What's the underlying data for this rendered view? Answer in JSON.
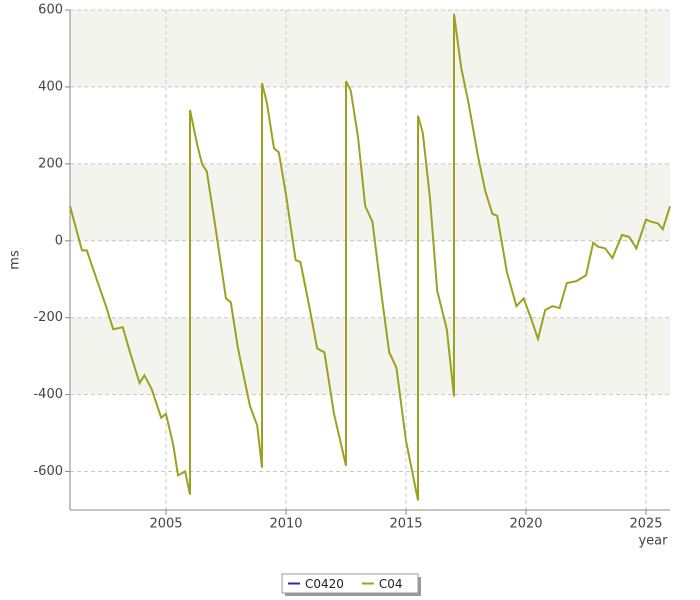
{
  "chart_data": {
    "type": "line",
    "x_label": "year",
    "y_label": "ms",
    "xlim": [
      2001,
      2026
    ],
    "xticks": [
      2005,
      2010,
      2015,
      2020,
      2025
    ],
    "ylim": [
      -700,
      600
    ],
    "yticks": [
      -600,
      -400,
      -200,
      0,
      200,
      400,
      600
    ],
    "grid": true,
    "legend": "bottom",
    "series": [
      {
        "name": "C0420",
        "color": "#2b2bb0",
        "x": [],
        "values": []
      },
      {
        "name": "C04",
        "color": "#9aa31f",
        "x": [
          2001.0,
          2001.5,
          2001.7,
          2002.0,
          2002.5,
          2002.8,
          2003.2,
          2003.5,
          2003.9,
          2004.1,
          2004.4,
          2004.8,
          2005.0,
          2005.3,
          2005.5,
          2005.8,
          2006.0,
          2006.0,
          2006.3,
          2006.5,
          2006.7,
          2007.0,
          2007.5,
          2007.7,
          2008.0,
          2008.5,
          2008.8,
          2009.0,
          2009.0,
          2009.2,
          2009.5,
          2009.7,
          2010.0,
          2010.4,
          2010.6,
          2011.0,
          2011.3,
          2011.6,
          2012.0,
          2012.5,
          2012.5,
          2012.7,
          2013.0,
          2013.3,
          2013.6,
          2014.0,
          2014.3,
          2014.6,
          2015.0,
          2015.5,
          2015.5,
          2015.7,
          2016.0,
          2016.3,
          2016.7,
          2017.0,
          2017.0,
          2017.3,
          2017.6,
          2018.0,
          2018.3,
          2018.6,
          2018.8,
          2019.2,
          2019.6,
          2019.9,
          2020.2,
          2020.5,
          2020.8,
          2021.1,
          2021.4,
          2021.7,
          2022.1,
          2022.5,
          2022.8,
          2023.0,
          2023.3,
          2023.6,
          2024.0,
          2024.3,
          2024.6,
          2025.0,
          2025.2,
          2025.5,
          2025.7,
          2026.0
        ],
        "values": [
          90,
          -25,
          -25,
          -80,
          -170,
          -230,
          -225,
          -290,
          -370,
          -350,
          -385,
          -460,
          -450,
          -530,
          -610,
          -600,
          -660,
          340,
          250,
          200,
          180,
          60,
          -150,
          -160,
          -280,
          -430,
          -480,
          -590,
          410,
          360,
          240,
          230,
          120,
          -50,
          -55,
          -180,
          -280,
          -290,
          -450,
          -585,
          415,
          390,
          270,
          90,
          50,
          -150,
          -290,
          -330,
          -520,
          -675,
          325,
          280,
          110,
          -130,
          -230,
          -405,
          590,
          450,
          360,
          220,
          130,
          70,
          65,
          -80,
          -170,
          -150,
          -200,
          -255,
          -180,
          -170,
          -175,
          -110,
          -105,
          -90,
          -5,
          -15,
          -20,
          -45,
          15,
          10,
          -20,
          55,
          50,
          45,
          30,
          90
        ]
      }
    ]
  }
}
